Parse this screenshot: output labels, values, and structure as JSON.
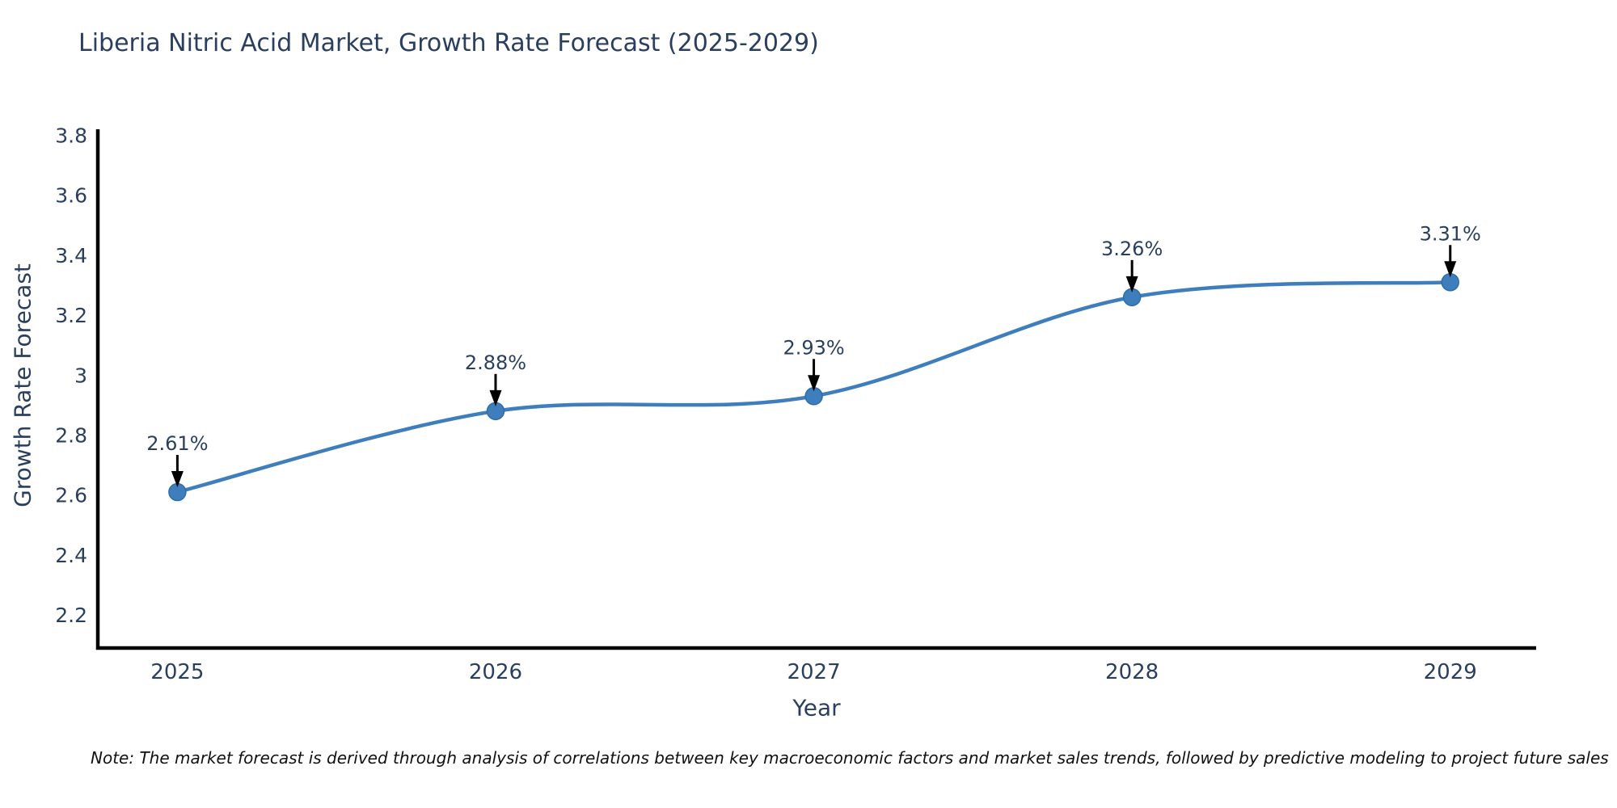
{
  "title": "Liberia Nitric Acid Market, Growth Rate Forecast (2025-2029)",
  "note": "Note: The market forecast is derived through analysis of correlations between key macroeconomic factors and market sales trends, followed by predictive modeling to project future sales",
  "chart_data": {
    "type": "line",
    "title": "Liberia Nitric Acid Market, Growth Rate Forecast (2025-2029)",
    "xlabel": "Year",
    "ylabel": "Growth Rate Forecast",
    "x": [
      2025,
      2026,
      2027,
      2028,
      2029
    ],
    "values": [
      2.61,
      2.88,
      2.93,
      3.26,
      3.31
    ],
    "point_labels": [
      "2.61%",
      "2.88%",
      "2.93%",
      "3.26%",
      "3.31%"
    ],
    "xticks": [
      2025,
      2026,
      2027,
      2028,
      2029
    ],
    "yticks": [
      2.2,
      2.4,
      2.6,
      2.8,
      3,
      3.2,
      3.4,
      3.6,
      3.8
    ],
    "xlim": [
      2024.75,
      2029.27
    ],
    "ylim": [
      2.09,
      3.82
    ],
    "line_shape": "spline",
    "grid": false,
    "legend": "none",
    "line_color": "#3e7ebd",
    "marker_color": "#3e7ebd",
    "marker_edge_color": "#2f6da8",
    "axis_color": "#000000",
    "tick_label_color": "#2a3f5f",
    "annotation_text_color": "#2a3f5f",
    "annotation_arrow_color": "#000000"
  }
}
